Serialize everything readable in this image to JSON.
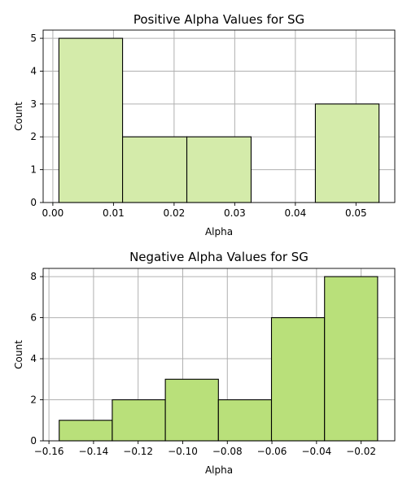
{
  "chart_data": [
    {
      "type": "bar",
      "title": "Positive Alpha Values for SG",
      "xlabel": "Alpha",
      "ylabel": "Count",
      "xlim": [
        -0.0016,
        0.0564
      ],
      "ylim": [
        0,
        5.25
      ],
      "xticks": [
        0.0,
        0.01,
        0.02,
        0.03,
        0.04,
        0.05
      ],
      "xtick_labels": [
        "0.00",
        "0.01",
        "0.02",
        "0.03",
        "0.04",
        "0.05"
      ],
      "yticks": [
        0,
        1,
        2,
        3,
        4,
        5
      ],
      "ytick_labels": [
        "0",
        "1",
        "2",
        "3",
        "4",
        "5"
      ],
      "grid": true,
      "color": "#d4ebaa",
      "bins": [
        {
          "x0": 0.001,
          "x1": 0.0115,
          "value": 5
        },
        {
          "x0": 0.0115,
          "x1": 0.0221,
          "value": 2
        },
        {
          "x0": 0.0221,
          "x1": 0.0327,
          "value": 2
        },
        {
          "x0": 0.0327,
          "x1": 0.0433,
          "value": 0
        },
        {
          "x0": 0.0433,
          "x1": 0.0538,
          "value": 3
        }
      ]
    },
    {
      "type": "bar",
      "title": "Negative Alpha Values for SG",
      "xlabel": "Alpha",
      "ylabel": "Count",
      "xlim": [
        -0.1626,
        -0.0049
      ],
      "ylim": [
        0,
        8.4
      ],
      "xticks": [
        -0.16,
        -0.14,
        -0.12,
        -0.1,
        -0.08,
        -0.06,
        -0.04,
        -0.02
      ],
      "xtick_labels": [
        "−0.16",
        "−0.14",
        "−0.12",
        "−0.10",
        "−0.08",
        "−0.06",
        "−0.04",
        "−0.02"
      ],
      "yticks": [
        0,
        2,
        4,
        6,
        8
      ],
      "ytick_labels": [
        "0",
        "2",
        "4",
        "6",
        "8"
      ],
      "grid": true,
      "color": "#b9e07a",
      "bins": [
        {
          "x0": -0.1554,
          "x1": -0.1316,
          "value": 1
        },
        {
          "x0": -0.1316,
          "x1": -0.1078,
          "value": 2
        },
        {
          "x0": -0.1078,
          "x1": -0.084,
          "value": 3
        },
        {
          "x0": -0.084,
          "x1": -0.0602,
          "value": 2
        },
        {
          "x0": -0.0602,
          "x1": -0.0364,
          "value": 6
        },
        {
          "x0": -0.0364,
          "x1": -0.0126,
          "value": 8
        }
      ]
    }
  ]
}
